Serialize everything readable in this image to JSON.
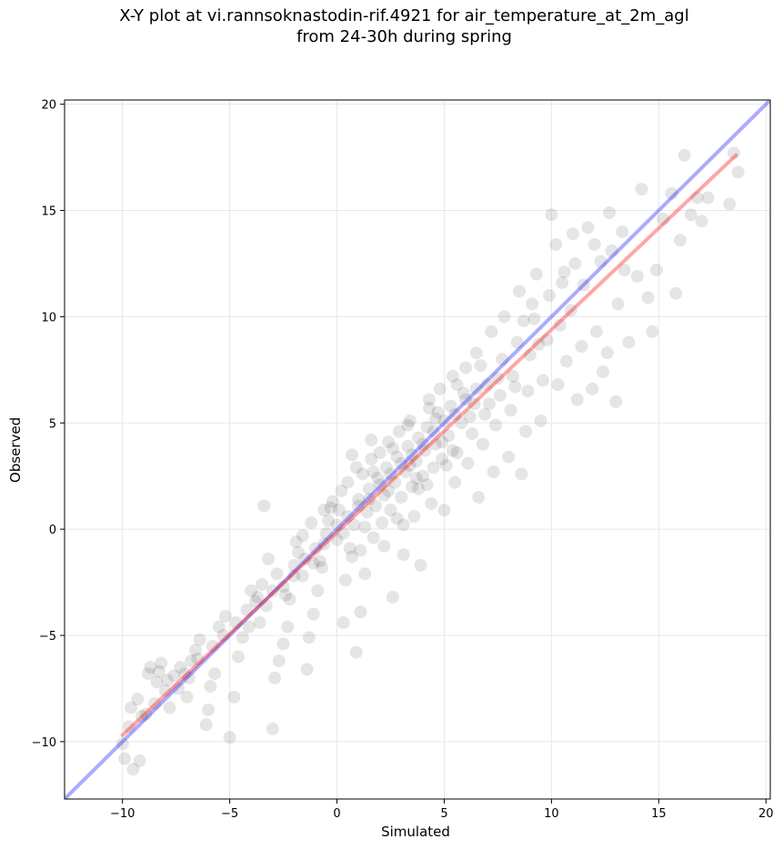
{
  "chart_data": {
    "type": "scatter",
    "title": [
      "X-Y plot at vi.rannsoknastodin-rif.4921 for air_temperature_at_2m_agl",
      "from 24-30h during spring"
    ],
    "xlabel": "Simulated",
    "ylabel": "Observed",
    "xlim": [
      -12.7,
      20.2
    ],
    "ylim": [
      -12.7,
      20.2
    ],
    "xticks": [
      -10,
      -5,
      0,
      5,
      10,
      15,
      20
    ],
    "yticks": [
      -10,
      -5,
      0,
      5,
      10,
      15,
      20
    ],
    "xtick_labels": [
      "−10",
      "−5",
      "0",
      "5",
      "10",
      "15",
      "20"
    ],
    "ytick_labels": [
      "−10",
      "−5",
      "0",
      "5",
      "10",
      "15",
      "20"
    ],
    "grid": true,
    "point_color": "#000000",
    "point_alpha": 0.1,
    "one_to_one_line": {
      "color": "#0000ff",
      "alpha": 0.33,
      "x": [
        -12.7,
        20.2
      ],
      "y": [
        -12.7,
        20.2
      ]
    },
    "fit_line": {
      "color": "#ff0000",
      "alpha": 0.35,
      "x": [
        -10.0,
        18.6
      ],
      "y": [
        -9.7,
        17.6
      ]
    },
    "points": [
      [
        -10.0,
        -10.1
      ],
      [
        -9.9,
        -10.8
      ],
      [
        -9.5,
        -11.3
      ],
      [
        -9.2,
        -10.9
      ],
      [
        -9.7,
        -9.3
      ],
      [
        -9.6,
        -8.4
      ],
      [
        -9.3,
        -8.0
      ],
      [
        -9.1,
        -8.8
      ],
      [
        -8.8,
        -6.8
      ],
      [
        -8.7,
        -6.5
      ],
      [
        -8.4,
        -7.2
      ],
      [
        -8.3,
        -6.7
      ],
      [
        -8.2,
        -6.3
      ],
      [
        -8.0,
        -7.6
      ],
      [
        -7.8,
        -8.4
      ],
      [
        -7.6,
        -6.9
      ],
      [
        -7.3,
        -6.5
      ],
      [
        -7.0,
        -7.9
      ],
      [
        -6.8,
        -6.2
      ],
      [
        -6.6,
        -5.7
      ],
      [
        -6.4,
        -5.2
      ],
      [
        -6.1,
        -9.2
      ],
      [
        -6.0,
        -8.5
      ],
      [
        -5.9,
        -7.4
      ],
      [
        -5.7,
        -6.8
      ],
      [
        -5.5,
        -4.6
      ],
      [
        -5.2,
        -4.1
      ],
      [
        -5.0,
        -9.8
      ],
      [
        -4.8,
        -7.9
      ],
      [
        -4.6,
        -6.0
      ],
      [
        -4.4,
        -5.1
      ],
      [
        -4.2,
        -3.8
      ],
      [
        -4.0,
        -2.9
      ],
      [
        -3.8,
        -3.4
      ],
      [
        -3.6,
        -4.4
      ],
      [
        -3.5,
        -2.6
      ],
      [
        -3.4,
        1.1
      ],
      [
        -3.2,
        -1.4
      ],
      [
        -3.0,
        -9.4
      ],
      [
        -2.9,
        -7.0
      ],
      [
        -2.7,
        -6.2
      ],
      [
        -2.5,
        -5.4
      ],
      [
        -2.3,
        -4.6
      ],
      [
        -2.2,
        -3.3
      ],
      [
        -2.0,
        -2.2
      ],
      [
        -1.8,
        -1.1
      ],
      [
        -1.6,
        -0.3
      ],
      [
        -1.4,
        -6.6
      ],
      [
        -1.3,
        -5.1
      ],
      [
        -1.1,
        -4.0
      ],
      [
        -0.9,
        -2.9
      ],
      [
        -0.7,
        -1.8
      ],
      [
        -0.6,
        -0.7
      ],
      [
        -0.4,
        0.4
      ],
      [
        -0.2,
        1.3
      ],
      [
        0.0,
        -0.5
      ],
      [
        0.1,
        0.9
      ],
      [
        0.3,
        -4.4
      ],
      [
        0.4,
        -2.4
      ],
      [
        0.5,
        2.2
      ],
      [
        0.7,
        -1.3
      ],
      [
        0.8,
        0.2
      ],
      [
        0.9,
        -5.8
      ],
      [
        1.0,
        1.4
      ],
      [
        1.1,
        -3.9
      ],
      [
        1.2,
        2.6
      ],
      [
        1.3,
        -2.1
      ],
      [
        1.4,
        0.8
      ],
      [
        1.5,
        1.9
      ],
      [
        1.6,
        3.3
      ],
      [
        1.7,
        -0.4
      ],
      [
        1.8,
        1.1
      ],
      [
        1.9,
        2.4
      ],
      [
        2.0,
        3.6
      ],
      [
        2.1,
        0.3
      ],
      [
        2.2,
        1.6
      ],
      [
        2.3,
        2.9
      ],
      [
        2.4,
        4.1
      ],
      [
        2.5,
        0.9
      ],
      [
        2.6,
        -3.2
      ],
      [
        2.7,
        2.2
      ],
      [
        2.8,
        3.4
      ],
      [
        2.9,
        4.6
      ],
      [
        3.0,
        1.5
      ],
      [
        3.1,
        -1.2
      ],
      [
        3.2,
        2.7
      ],
      [
        3.3,
        3.9
      ],
      [
        3.4,
        5.1
      ],
      [
        3.5,
        2.0
      ],
      [
        3.6,
        0.6
      ],
      [
        3.7,
        3.2
      ],
      [
        3.8,
        4.3
      ],
      [
        3.9,
        -1.7
      ],
      [
        4.0,
        2.5
      ],
      [
        4.1,
        3.7
      ],
      [
        4.2,
        4.8
      ],
      [
        4.3,
        6.1
      ],
      [
        4.4,
        1.2
      ],
      [
        4.5,
        2.9
      ],
      [
        4.6,
        4.0
      ],
      [
        4.7,
        5.5
      ],
      [
        4.8,
        6.6
      ],
      [
        4.9,
        3.3
      ],
      [
        5.0,
        0.9
      ],
      [
        5.2,
        4.4
      ],
      [
        5.3,
        5.8
      ],
      [
        5.4,
        7.2
      ],
      [
        5.5,
        2.2
      ],
      [
        5.6,
        3.6
      ],
      [
        5.8,
        5.0
      ],
      [
        5.9,
        6.4
      ],
      [
        6.0,
        7.6
      ],
      [
        6.1,
        3.1
      ],
      [
        6.3,
        4.5
      ],
      [
        6.4,
        5.9
      ],
      [
        6.5,
        8.3
      ],
      [
        6.6,
        1.5
      ],
      [
        6.8,
        4.0
      ],
      [
        6.9,
        5.4
      ],
      [
        7.0,
        6.8
      ],
      [
        7.2,
        9.3
      ],
      [
        7.3,
        2.7
      ],
      [
        7.4,
        4.9
      ],
      [
        7.6,
        6.3
      ],
      [
        7.7,
        8.0
      ],
      [
        7.8,
        10.0
      ],
      [
        8.0,
        3.4
      ],
      [
        8.1,
        5.6
      ],
      [
        8.2,
        7.2
      ],
      [
        8.4,
        8.8
      ],
      [
        8.5,
        11.2
      ],
      [
        8.6,
        2.6
      ],
      [
        8.8,
        4.6
      ],
      [
        8.9,
        6.5
      ],
      [
        9.0,
        8.2
      ],
      [
        9.2,
        9.9
      ],
      [
        9.3,
        12.0
      ],
      [
        9.5,
        5.1
      ],
      [
        9.6,
        7.0
      ],
      [
        9.8,
        8.9
      ],
      [
        9.9,
        11.0
      ],
      [
        10.0,
        14.8
      ],
      [
        10.2,
        13.4
      ],
      [
        10.3,
        6.8
      ],
      [
        10.4,
        9.6
      ],
      [
        10.6,
        12.1
      ],
      [
        10.7,
        7.9
      ],
      [
        10.9,
        10.3
      ],
      [
        11.0,
        13.9
      ],
      [
        11.2,
        6.1
      ],
      [
        11.4,
        8.6
      ],
      [
        11.5,
        11.5
      ],
      [
        11.7,
        14.2
      ],
      [
        11.9,
        6.6
      ],
      [
        12.1,
        9.3
      ],
      [
        12.3,
        12.6
      ],
      [
        12.4,
        7.4
      ],
      [
        12.6,
        8.3
      ],
      [
        12.8,
        13.1
      ],
      [
        13.0,
        6.0
      ],
      [
        13.1,
        10.6
      ],
      [
        13.3,
        14.0
      ],
      [
        13.6,
        8.8
      ],
      [
        14.0,
        11.9
      ],
      [
        14.2,
        16.0
      ],
      [
        14.5,
        10.9
      ],
      [
        14.7,
        9.3
      ],
      [
        14.9,
        12.2
      ],
      [
        15.2,
        14.6
      ],
      [
        15.6,
        15.8
      ],
      [
        15.8,
        11.1
      ],
      [
        16.0,
        13.6
      ],
      [
        16.2,
        17.6
      ],
      [
        16.5,
        14.8
      ],
      [
        16.8,
        15.6
      ],
      [
        17.0,
        14.5
      ],
      [
        17.3,
        15.6
      ],
      [
        18.3,
        15.3
      ],
      [
        18.5,
        17.7
      ],
      [
        18.7,
        16.8
      ],
      [
        -3.0,
        -2.9
      ],
      [
        -2.5,
        -2.7
      ],
      [
        -2.0,
        -1.7
      ],
      [
        -1.5,
        -1.4
      ],
      [
        -1.0,
        -0.9
      ],
      [
        -0.5,
        -0.2
      ],
      [
        0.0,
        0.2
      ],
      [
        0.5,
        0.6
      ],
      [
        1.0,
        1.1
      ],
      [
        1.5,
        1.4
      ],
      [
        2.0,
        2.1
      ],
      [
        2.5,
        2.6
      ],
      [
        3.0,
        3.1
      ],
      [
        3.5,
        3.5
      ],
      [
        4.0,
        4.0
      ],
      [
        4.5,
        4.6
      ],
      [
        5.0,
        5.1
      ],
      [
        5.5,
        5.4
      ],
      [
        6.0,
        6.1
      ],
      [
        6.5,
        6.6
      ],
      [
        0.2,
        1.8
      ],
      [
        0.6,
        -0.9
      ],
      [
        0.9,
        2.9
      ],
      [
        1.3,
        0.1
      ],
      [
        1.7,
        2.7
      ],
      [
        2.2,
        -0.8
      ],
      [
        2.6,
        3.8
      ],
      [
        3.1,
        0.2
      ],
      [
        3.4,
        3.0
      ],
      [
        3.8,
        1.9
      ],
      [
        4.2,
        2.1
      ],
      [
        4.6,
        5.2
      ],
      [
        5.1,
        3.0
      ],
      [
        5.6,
        6.8
      ],
      [
        6.2,
        5.3
      ],
      [
        -1.2,
        0.3
      ],
      [
        -0.8,
        -1.5
      ],
      [
        -0.3,
        1.0
      ],
      [
        0.7,
        3.5
      ],
      [
        1.1,
        -1.0
      ],
      [
        1.6,
        4.2
      ],
      [
        2.4,
        1.8
      ],
      [
        2.8,
        0.5
      ],
      [
        3.3,
        4.9
      ],
      [
        3.7,
        2.4
      ],
      [
        4.3,
        5.7
      ],
      [
        4.9,
        4.1
      ],
      [
        5.4,
        3.7
      ],
      [
        6.7,
        7.7
      ],
      [
        7.1,
        5.9
      ],
      [
        -6.9,
        -7.0
      ],
      [
        -6.5,
        -6.1
      ],
      [
        -5.8,
        -5.5
      ],
      [
        -5.3,
        -5.0
      ],
      [
        -4.7,
        -4.4
      ],
      [
        -4.1,
        -4.6
      ],
      [
        -3.7,
        -3.2
      ],
      [
        -3.3,
        -3.6
      ],
      [
        -2.8,
        -2.1
      ],
      [
        -2.4,
        -3.1
      ],
      [
        -1.9,
        -0.6
      ],
      [
        -1.6,
        -2.2
      ],
      [
        -1.1,
        -1.6
      ],
      [
        -0.6,
        0.9
      ],
      [
        0.3,
        -0.2
      ],
      [
        8.7,
        9.8
      ],
      [
        9.1,
        10.6
      ],
      [
        9.4,
        8.7
      ],
      [
        7.5,
        7.1
      ],
      [
        8.3,
        6.7
      ],
      [
        10.5,
        11.6
      ],
      [
        11.1,
        12.5
      ],
      [
        12.0,
        13.4
      ],
      [
        12.7,
        14.9
      ],
      [
        13.4,
        12.2
      ],
      [
        -8.9,
        -8.7
      ],
      [
        -8.5,
        -8.2
      ],
      [
        -7.9,
        -7.1
      ],
      [
        -7.4,
        -7.5
      ],
      [
        -7.1,
        -6.8
      ]
    ]
  }
}
